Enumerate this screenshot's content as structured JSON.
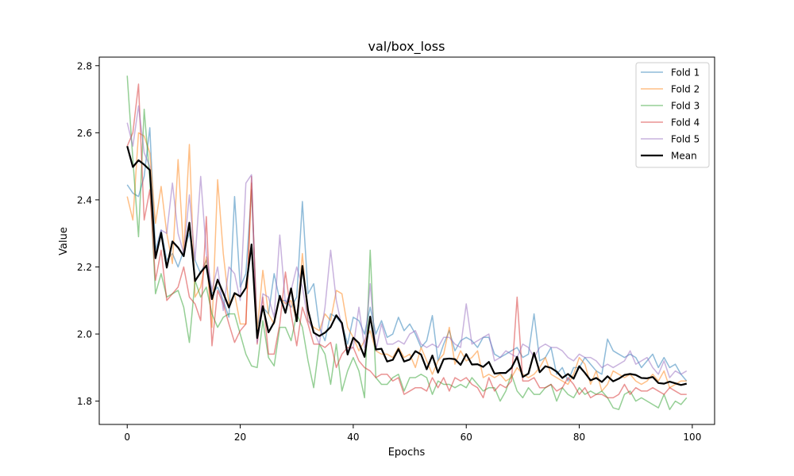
{
  "chart_data": {
    "type": "line",
    "title": "val/box_loss",
    "xlabel": "Epochs",
    "ylabel": "Value",
    "xlim": [
      -4.95,
      103.95
    ],
    "ylim": [
      1.7305,
      2.8255
    ],
    "xticks": [
      0,
      20,
      40,
      60,
      80,
      100
    ],
    "yticks": [
      1.8,
      2.0,
      2.2,
      2.4,
      2.6,
      2.8
    ],
    "xtick_labels": [
      "0",
      "20",
      "40",
      "60",
      "80",
      "100"
    ],
    "ytick_labels": [
      "1.8",
      "2.0",
      "2.2",
      "2.4",
      "2.6",
      "2.8"
    ],
    "grid": false,
    "legend_position": "top-right",
    "x": [
      0,
      1,
      2,
      3,
      4,
      5,
      6,
      7,
      8,
      9,
      10,
      11,
      12,
      13,
      14,
      15,
      16,
      17,
      18,
      19,
      20,
      21,
      22,
      23,
      24,
      25,
      26,
      27,
      28,
      29,
      30,
      31,
      32,
      33,
      34,
      35,
      36,
      37,
      38,
      39,
      40,
      41,
      42,
      43,
      44,
      45,
      46,
      47,
      48,
      49,
      50,
      51,
      52,
      53,
      54,
      55,
      56,
      57,
      58,
      59,
      60,
      61,
      62,
      63,
      64,
      65,
      66,
      67,
      68,
      69,
      70,
      71,
      72,
      73,
      74,
      75,
      76,
      77,
      78,
      79,
      80,
      81,
      82,
      83,
      84,
      85,
      86,
      87,
      88,
      89,
      90,
      91,
      92,
      93,
      94,
      95,
      96,
      97,
      98,
      99
    ],
    "series": [
      {
        "name": "Fold 1",
        "color": "#1f77b4",
        "alpha": 0.5,
        "width": 1.5,
        "values": [
          2.445,
          2.42,
          2.41,
          2.47,
          2.615,
          2.25,
          2.31,
          2.22,
          2.24,
          2.2,
          2.25,
          2.3,
          2.22,
          2.18,
          2.22,
          2.12,
          2.14,
          2.1,
          2.05,
          2.41,
          2.14,
          2.18,
          2.43,
          2.02,
          2.08,
          2.06,
          2.18,
          2.1,
          2.1,
          2.08,
          2.11,
          2.395,
          2.12,
          2.15,
          2.02,
          1.98,
          2.06,
          2.05,
          2.03,
          1.97,
          2.05,
          2.04,
          2.0,
          2.08,
          2.0,
          2.04,
          1.99,
          2.0,
          2.05,
          2.01,
          2.03,
          2.0,
          1.96,
          1.98,
          2.055,
          1.92,
          1.97,
          2.01,
          1.95,
          1.98,
          1.99,
          1.98,
          1.96,
          1.99,
          1.99,
          1.94,
          1.93,
          1.94,
          1.95,
          1.96,
          1.93,
          1.94,
          2.06,
          1.92,
          1.93,
          1.96,
          1.88,
          1.9,
          1.86,
          1.9,
          1.9,
          1.93,
          1.91,
          1.89,
          1.88,
          1.985,
          1.95,
          1.94,
          1.93,
          1.94,
          1.93,
          1.9,
          1.92,
          1.94,
          1.9,
          1.93,
          1.9,
          1.91,
          1.88,
          1.86
        ]
      },
      {
        "name": "Fold 2",
        "color": "#ff7f0e",
        "alpha": 0.5,
        "width": 1.5,
        "values": [
          2.41,
          2.34,
          2.6,
          2.59,
          2.54,
          2.33,
          2.44,
          2.3,
          2.21,
          2.52,
          2.24,
          2.565,
          2.11,
          2.14,
          2.23,
          2.02,
          2.46,
          2.24,
          2.09,
          2.12,
          2.03,
          2.03,
          2.45,
          2.01,
          2.19,
          2.06,
          2.03,
          2.11,
          2.09,
          2.1,
          2.04,
          2.24,
          2.04,
          2.02,
          2.01,
          2.06,
          2.04,
          2.13,
          2.12,
          2.02,
          1.99,
          1.95,
          1.98,
          2.01,
          1.95,
          1.94,
          1.94,
          1.93,
          1.96,
          1.93,
          1.94,
          1.9,
          1.96,
          1.92,
          1.88,
          1.92,
          1.94,
          2.02,
          1.91,
          1.95,
          1.92,
          1.93,
          1.95,
          1.87,
          1.88,
          1.87,
          1.88,
          1.86,
          1.87,
          1.9,
          1.88,
          1.87,
          1.88,
          1.9,
          1.93,
          1.88,
          1.87,
          1.86,
          1.85,
          1.88,
          1.93,
          1.91,
          1.85,
          1.89,
          1.83,
          1.85,
          1.89,
          1.88,
          1.87,
          1.88,
          1.86,
          1.85,
          1.86,
          1.88,
          1.86,
          1.89,
          1.84,
          1.85,
          1.86,
          1.86
        ]
      },
      {
        "name": "Fold 3",
        "color": "#2ca02c",
        "alpha": 0.5,
        "width": 1.5,
        "values": [
          2.77,
          2.52,
          2.29,
          2.67,
          2.46,
          2.12,
          2.18,
          2.11,
          2.12,
          2.13,
          2.08,
          1.975,
          2.16,
          2.11,
          2.14,
          2.06,
          2.02,
          2.05,
          2.06,
          2.06,
          2.0,
          1.94,
          1.905,
          1.9,
          2.04,
          1.93,
          1.905,
          2.02,
          2.02,
          1.98,
          2.06,
          2.02,
          1.92,
          1.84,
          1.97,
          1.94,
          1.85,
          1.97,
          1.83,
          1.89,
          1.93,
          1.89,
          1.81,
          2.25,
          1.87,
          1.85,
          1.85,
          1.87,
          1.88,
          1.83,
          1.87,
          1.87,
          1.88,
          1.87,
          1.82,
          1.86,
          1.85,
          1.85,
          1.84,
          1.85,
          1.84,
          1.87,
          1.85,
          1.83,
          1.84,
          1.84,
          1.8,
          1.83,
          1.88,
          1.83,
          1.81,
          1.84,
          1.82,
          1.82,
          1.84,
          1.85,
          1.8,
          1.84,
          1.82,
          1.81,
          1.84,
          1.82,
          1.83,
          1.82,
          1.83,
          1.81,
          1.78,
          1.775,
          1.82,
          1.83,
          1.8,
          1.81,
          1.8,
          1.79,
          1.78,
          1.82,
          1.775,
          1.8,
          1.79,
          1.81
        ]
      },
      {
        "name": "Fold 4",
        "color": "#d62728",
        "alpha": 0.5,
        "width": 1.5,
        "values": [
          2.56,
          2.6,
          2.745,
          2.34,
          2.43,
          2.16,
          2.25,
          2.1,
          2.12,
          2.14,
          2.2,
          2.11,
          2.09,
          2.04,
          2.35,
          1.965,
          2.13,
          2.09,
          2.03,
          1.975,
          2.01,
          2.03,
          2.47,
          1.97,
          2.11,
          1.94,
          1.94,
          2.03,
          2.185,
          2.06,
          1.965,
          2.08,
          2.03,
          1.97,
          1.97,
          1.96,
          1.975,
          1.9,
          1.94,
          1.96,
          1.96,
          1.92,
          1.9,
          1.89,
          1.87,
          1.88,
          1.88,
          1.86,
          1.87,
          1.82,
          1.83,
          1.84,
          1.84,
          1.83,
          1.87,
          1.84,
          1.87,
          1.83,
          1.87,
          1.86,
          1.87,
          1.85,
          1.84,
          1.81,
          1.87,
          1.83,
          1.85,
          1.84,
          1.86,
          2.11,
          1.86,
          1.86,
          1.87,
          1.84,
          1.84,
          1.85,
          1.83,
          1.84,
          1.87,
          1.85,
          1.82,
          1.84,
          1.81,
          1.82,
          1.82,
          1.81,
          1.81,
          1.82,
          1.85,
          1.82,
          1.84,
          1.83,
          1.83,
          1.84,
          1.83,
          1.82,
          1.84,
          1.83,
          1.82,
          1.82
        ]
      },
      {
        "name": "Fold 5",
        "color": "#9467bd",
        "alpha": 0.5,
        "width": 1.5,
        "values": [
          2.63,
          2.56,
          2.68,
          2.54,
          2.5,
          2.23,
          2.31,
          2.3,
          2.45,
          2.3,
          2.24,
          2.415,
          2.22,
          2.47,
          2.24,
          2.13,
          2.2,
          2.07,
          2.2,
          2.18,
          2.1,
          2.45,
          2.475,
          1.975,
          2.12,
          2.11,
          2.05,
          2.295,
          2.09,
          2.13,
          2.2,
          2.14,
          2.04,
          2.01,
          1.97,
          2.08,
          2.25,
          2.1,
          2.02,
          1.95,
          1.96,
          2.08,
          1.96,
          2.15,
          1.95,
          2.03,
          1.97,
          1.97,
          1.98,
          1.97,
          2.0,
          2.01,
          1.97,
          1.96,
          1.97,
          1.96,
          1.99,
          1.99,
          1.97,
          1.96,
          2.09,
          1.97,
          1.98,
          1.99,
          2.0,
          1.92,
          1.93,
          1.95,
          1.94,
          1.93,
          1.97,
          1.96,
          1.93,
          1.96,
          1.97,
          1.96,
          1.96,
          1.95,
          1.93,
          1.92,
          1.94,
          1.93,
          1.93,
          1.92,
          1.9,
          1.91,
          1.9,
          1.91,
          1.92,
          1.95,
          1.91,
          1.92,
          1.93,
          1.9,
          1.88,
          1.92,
          1.87,
          1.89,
          1.88,
          1.89
        ]
      },
      {
        "name": "Mean",
        "color": "#000000",
        "alpha": 1.0,
        "width": 2.2,
        "values": [
          2.56,
          2.498,
          2.518,
          2.505,
          2.489,
          2.226,
          2.302,
          2.198,
          2.276,
          2.258,
          2.232,
          2.332,
          2.158,
          2.184,
          2.204,
          2.104,
          2.162,
          2.122,
          2.079,
          2.122,
          2.112,
          2.138,
          2.267,
          1.988,
          2.083,
          2.005,
          2.035,
          2.114,
          2.063,
          2.136,
          2.038,
          2.203,
          2.071,
          2.004,
          1.994,
          2.004,
          2.021,
          2.056,
          2.033,
          1.939,
          1.989,
          1.973,
          1.932,
          2.052,
          1.954,
          1.956,
          1.918,
          1.923,
          1.955,
          1.918,
          1.924,
          1.949,
          1.939,
          1.895,
          1.936,
          1.885,
          1.925,
          1.927,
          1.925,
          1.908,
          1.94,
          1.909,
          1.91,
          1.902,
          1.917,
          1.882,
          1.884,
          1.884,
          1.899,
          1.932,
          1.872,
          1.882,
          1.944,
          1.886,
          1.904,
          1.899,
          1.888,
          1.869,
          1.881,
          1.867,
          1.904,
          1.884,
          1.862,
          1.869,
          1.857,
          1.874,
          1.859,
          1.867,
          1.878,
          1.881,
          1.878,
          1.869,
          1.868,
          1.872,
          1.854,
          1.852,
          1.858,
          1.853,
          1.848,
          1.852
        ]
      }
    ]
  }
}
